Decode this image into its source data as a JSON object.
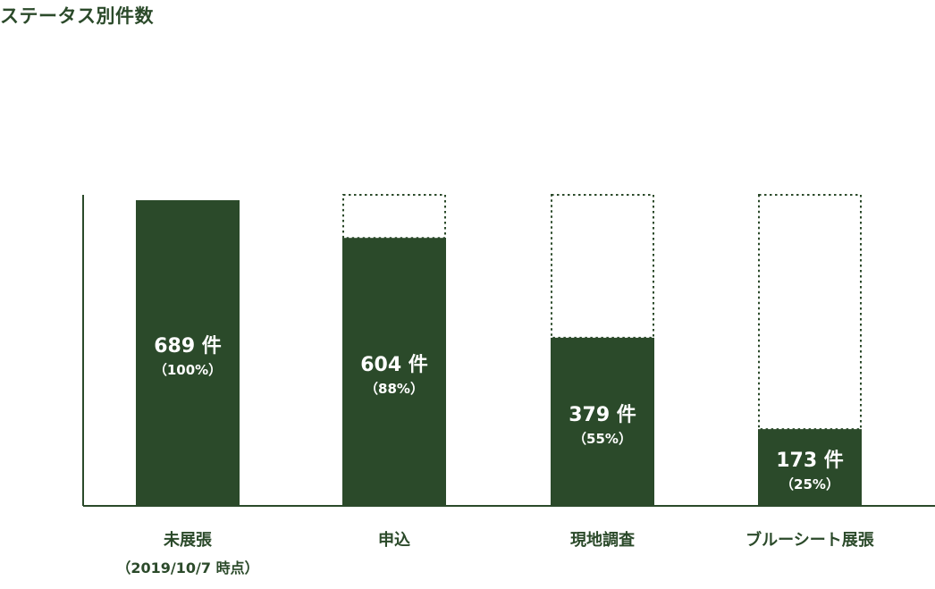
{
  "chart_data": {
    "type": "bar",
    "title": "ステータス別件数",
    "categories": [
      "未展張",
      "申込",
      "現地調査",
      "ブルーシート展張"
    ],
    "category_note": "（2019/10/7 時点）",
    "values": [
      689,
      604,
      379,
      173
    ],
    "percent_labels": [
      "（100%）",
      "（88%）",
      "（55%）",
      "（25%）"
    ],
    "count_suffix": "件",
    "ylim": [
      0,
      689
    ],
    "xlabel": "",
    "ylabel": "",
    "grid": false,
    "colors": {
      "bar": "#2b4a2a",
      "outline": "#2b4a2a",
      "text": "#2b4a2a",
      "bar_text": "#ffffff"
    }
  }
}
